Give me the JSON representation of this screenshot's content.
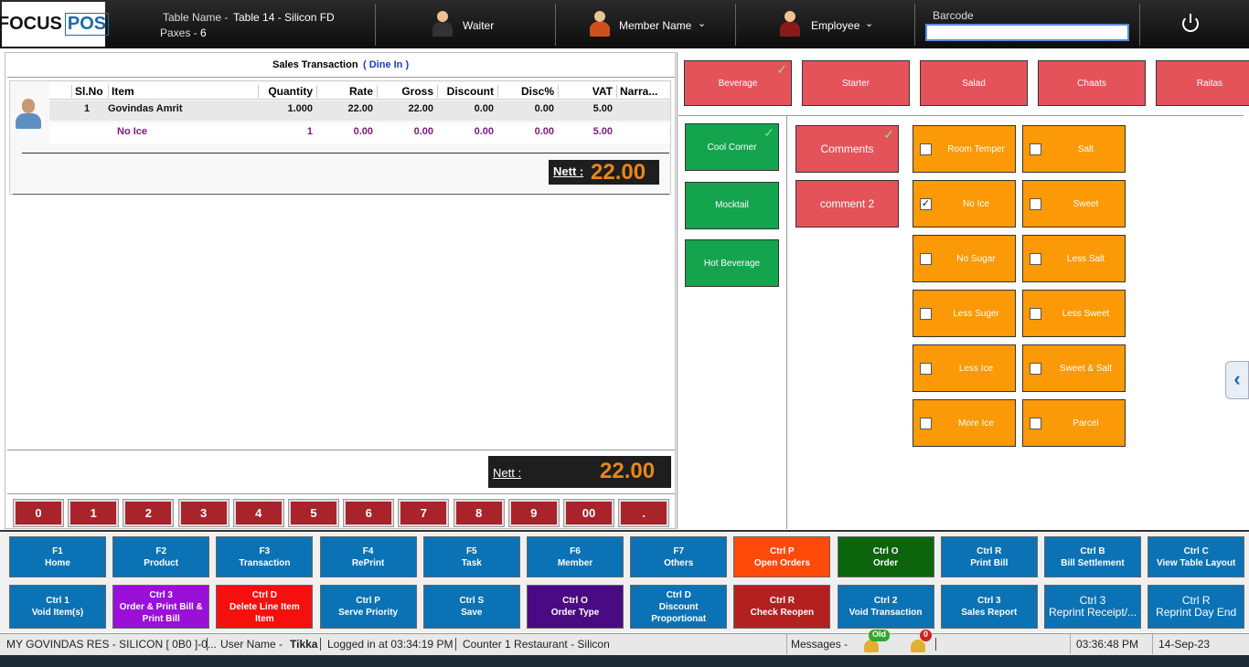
{
  "header": {
    "logo_focus": "FOCUS",
    "logo_pos": "POS",
    "table_label": "Table Name -",
    "table_value": "Table 14 - Silicon FD",
    "paxes_label": "Paxes -",
    "paxes_value": "6",
    "waiter": "Waiter",
    "member": "Member Name",
    "employee": "Employee",
    "barcode": "Barcode"
  },
  "transaction": {
    "title": "Sales Transaction",
    "mode": "( Dine In )",
    "columns": [
      "Sl.No",
      "Item",
      "Quantity",
      "Rate",
      "Gross",
      "Discount",
      "Disc%",
      "VAT",
      "Narra..."
    ],
    "rows": [
      {
        "sl_no": "1",
        "item": "Govindas Amrit",
        "quantity": "1.000",
        "rate": "22.00",
        "gross": "22.00",
        "discount": "0.00",
        "disc_pct": "0.00",
        "vat": "5.00",
        "modifier": false
      },
      {
        "item": "No Ice",
        "quantity": "1",
        "rate": "0.00",
        "gross": "0.00",
        "discount": "0.00",
        "disc_pct": "0.00",
        "vat": "5.00",
        "modifier": true
      }
    ],
    "nett_label": "Nett :",
    "nett_value": "22.00"
  },
  "footer_nett": {
    "label": "Nett :",
    "value": "22.00"
  },
  "keypad": [
    "0",
    "1",
    "2",
    "3",
    "4",
    "5",
    "6",
    "7",
    "8",
    "9",
    "00",
    "."
  ],
  "categories": [
    {
      "label": "Beverage",
      "checked": true
    },
    {
      "label": "Starter",
      "checked": false
    },
    {
      "label": "Salad",
      "checked": false
    },
    {
      "label": "Chaats",
      "checked": false
    },
    {
      "label": "Raitas",
      "checked": false
    }
  ],
  "subcategories": [
    {
      "label": "Cool Corner",
      "checked": true
    },
    {
      "label": "Mocktail",
      "checked": false
    },
    {
      "label": "Hot Beverage",
      "checked": false
    }
  ],
  "comment_groups": [
    {
      "label": "Comments",
      "checked": true
    },
    {
      "label": "comment 2",
      "checked": false
    }
  ],
  "comment_options": [
    {
      "label": "Room Temper",
      "checked": false
    },
    {
      "label": "Salt",
      "checked": false
    },
    {
      "label": "No Ice",
      "checked": true
    },
    {
      "label": "Sweet",
      "checked": false
    },
    {
      "label": "No Sugar",
      "checked": false
    },
    {
      "label": "Less Salt",
      "checked": false
    },
    {
      "label": "Less Suger",
      "checked": false
    },
    {
      "label": "Less Sweet",
      "checked": false
    },
    {
      "label": "Less Ice",
      "checked": false
    },
    {
      "label": "Sweet & Salt",
      "checked": false
    },
    {
      "label": "More Ice",
      "checked": false
    },
    {
      "label": "Parcel",
      "checked": false
    }
  ],
  "function_keys": [
    [
      {
        "key": "F1",
        "label": "Home",
        "color": "#0b72b5"
      },
      {
        "key": "F2",
        "label": "Product",
        "color": "#0b72b5"
      },
      {
        "key": "F3",
        "label": "Transaction",
        "color": "#0b72b5"
      },
      {
        "key": "F4",
        "label": "RePrint",
        "color": "#0b72b5"
      },
      {
        "key": "F5",
        "label": "Task",
        "color": "#0b72b5"
      },
      {
        "key": "F6",
        "label": "Member",
        "color": "#0b72b5"
      },
      {
        "key": "F7",
        "label": "Others",
        "color": "#0b72b5"
      },
      {
        "key": "Ctrl P",
        "label": "Open Orders",
        "color": "#ff4a0a"
      },
      {
        "key": "Ctrl O",
        "label": "Order",
        "color": "#0c640c"
      },
      {
        "key": "Ctrl R",
        "label": "Print Bill",
        "color": "#0b72b5"
      },
      {
        "key": "Ctrl B",
        "label": "Bill Settlement",
        "color": "#0b72b5"
      },
      {
        "key": "Ctrl C",
        "label": "View Table Layout",
        "color": "#0b72b5"
      }
    ],
    [
      {
        "key": "Ctrl 1",
        "label": "Void Item(s)",
        "color": "#0b72b5"
      },
      {
        "key": "Ctrl 3",
        "label": "Order & Print Bill & Print Bill",
        "color": "#9a10d8"
      },
      {
        "key": "Ctrl D",
        "label": "Delete Line Item Item",
        "color": "#f5100d"
      },
      {
        "key": "Ctrl P",
        "label": "Serve Priority",
        "color": "#0b72b5"
      },
      {
        "key": "Ctrl S",
        "label": "Save",
        "color": "#0b72b5"
      },
      {
        "key": "Ctrl O",
        "label": "Order Type",
        "color": "#4a0a82"
      },
      {
        "key": "Ctrl D",
        "label": "Discount Proportionat",
        "color": "#0b72b5"
      },
      {
        "key": "Ctrl R",
        "label": "Check Reopen",
        "color": "#b3201f"
      },
      {
        "key": "Ctrl 2",
        "label": "Void Transaction",
        "color": "#0b72b5"
      },
      {
        "key": "Ctrl 3",
        "label": "Sales Report",
        "color": "#0b72b5"
      },
      {
        "key": "Ctrl 3",
        "label": "Reprint Receipt/...",
        "color": "#0b72b5"
      },
      {
        "key": "Ctrl R",
        "label": "Reprint Day End",
        "color": "#0b72b5"
      }
    ]
  ],
  "status_bar": {
    "company": "MY GOVINDAS RES - SILICON [ 0B0 ]-0...",
    "user_label": "User Name -",
    "user": "Tikka",
    "login": "Logged in at 03:34:19 PM",
    "counter": "Counter 1 Restaurant - Silicon",
    "messages": "Messages -",
    "old": "Old",
    "count": "0",
    "time": "03:36:48 PM",
    "date": "14-Sep-23"
  }
}
